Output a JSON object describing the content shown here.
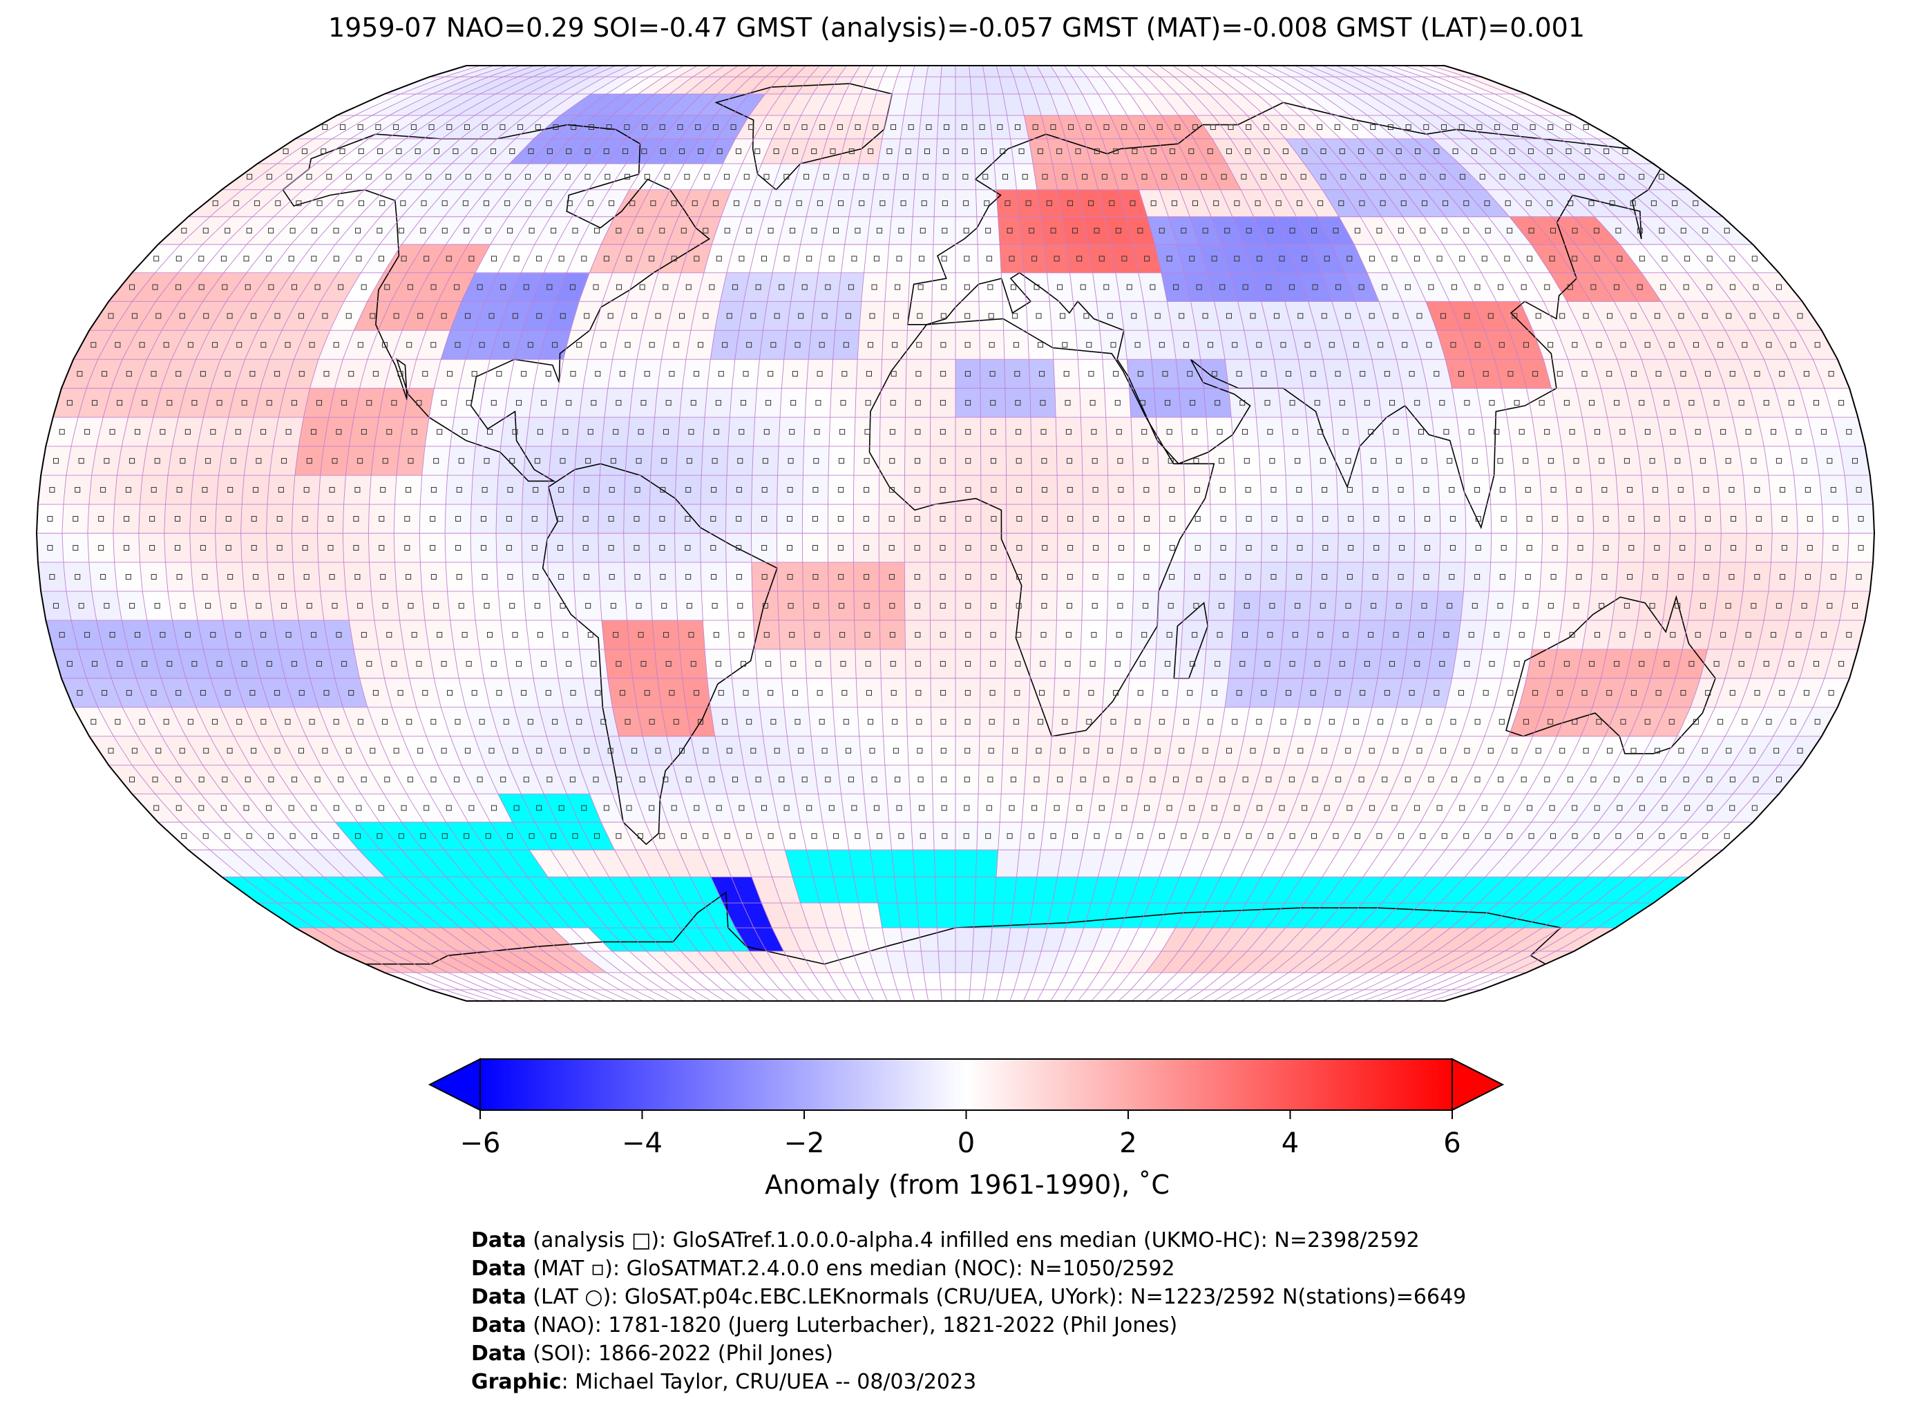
{
  "title": "1959-07 NAO=0.29 SOI=-0.47 GMST (analysis)=-0.057 GMST (MAT)=-0.008 GMST (LAT)=0.001",
  "colorbar": {
    "label": "Anomaly (from 1961-1990), ˚C",
    "ticks": [
      "−6",
      "−4",
      "−2",
      "0",
      "2",
      "4",
      "6"
    ],
    "range": [
      -6,
      6
    ],
    "colors": {
      "low": "#0000ff",
      "mid": "#ffffff",
      "high": "#ff0000"
    }
  },
  "map": {
    "projection": "Robinson",
    "grid_step_deg": 5,
    "no_data_color": "#00ffff",
    "grid_line_color": "#c080d0",
    "regions": [
      {
        "name": "North America interior",
        "lon": [
          -105,
          -80
        ],
        "lat": [
          30,
          45
        ],
        "value": -2.5
      },
      {
        "name": "Canadian Arctic",
        "lon": [
          -115,
          -60
        ],
        "lat": [
          65,
          80
        ],
        "value": -2.2
      },
      {
        "name": "Western USA",
        "lon": [
          -125,
          -105
        ],
        "lat": [
          35,
          50
        ],
        "value": 1.8
      },
      {
        "name": "Eastern Canada",
        "lon": [
          -80,
          -55
        ],
        "lat": [
          45,
          60
        ],
        "value": 1.6
      },
      {
        "name": "North Pacific",
        "lon": [
          -180,
          -130
        ],
        "lat": [
          20,
          45
        ],
        "value": 1.2
      },
      {
        "name": "Eastern Pacific",
        "lon": [
          -130,
          -105
        ],
        "lat": [
          10,
          25
        ],
        "value": 1.8
      },
      {
        "name": "Central Atlantic",
        "lon": [
          -50,
          -20
        ],
        "lat": [
          30,
          45
        ],
        "value": -1.2
      },
      {
        "name": "Greenland",
        "lon": [
          -50,
          -20
        ],
        "lat": [
          65,
          80
        ],
        "value": 0.6
      },
      {
        "name": "Eastern Europe",
        "lon": [
          10,
          45
        ],
        "lat": [
          45,
          60
        ],
        "value": 3.2
      },
      {
        "name": "Scandinavia and NW Russia",
        "lon": [
          20,
          70
        ],
        "lat": [
          60,
          75
        ],
        "value": 2.0
      },
      {
        "name": "Central Asia",
        "lon": [
          45,
          90
        ],
        "lat": [
          40,
          55
        ],
        "value": -2.5
      },
      {
        "name": "Siberia",
        "lon": [
          90,
          130
        ],
        "lat": [
          55,
          70
        ],
        "value": -1.5
      },
      {
        "name": "Northeast Asia",
        "lon": [
          130,
          150
        ],
        "lat": [
          40,
          55
        ],
        "value": 2.8
      },
      {
        "name": "China",
        "lon": [
          100,
          120
        ],
        "lat": [
          25,
          40
        ],
        "value": 2.6
      },
      {
        "name": "Sahara",
        "lon": [
          0,
          20
        ],
        "lat": [
          20,
          30
        ],
        "value": -1.5
      },
      {
        "name": "Arabia",
        "lon": [
          35,
          55
        ],
        "lat": [
          20,
          30
        ],
        "value": -1.8
      },
      {
        "name": "Southern South America",
        "lon": [
          -70,
          -50
        ],
        "lat": [
          -35,
          -15
        ],
        "value": 2.4
      },
      {
        "name": "Tropical South Atlantic",
        "lon": [
          -40,
          -10
        ],
        "lat": [
          -20,
          -5
        ],
        "value": 1.6
      },
      {
        "name": "Australia",
        "lon": [
          115,
          150
        ],
        "lat": [
          -35,
          -20
        ],
        "value": 1.8
      },
      {
        "name": "Indian Ocean",
        "lon": [
          55,
          100
        ],
        "lat": [
          -30,
          -10
        ],
        "value": -1.2
      },
      {
        "name": "South Pacific",
        "lon": [
          -180,
          -120
        ],
        "lat": [
          -30,
          -15
        ],
        "value": -1.5
      },
      {
        "name": "West Antarctica",
        "lon": [
          -90,
          -50
        ],
        "lat": [
          -75,
          -60
        ],
        "value": -5.5
      },
      {
        "name": "East Antarctica coast",
        "lon": [
          60,
          180
        ],
        "lat": [
          -80,
          -70
        ],
        "value": 1.0
      },
      {
        "name": "Ross Sea sector",
        "lon": [
          -180,
          -110
        ],
        "lat": [
          -80,
          -70
        ],
        "value": 1.6
      }
    ],
    "no_data_regions": [
      {
        "lon": [
          -180,
          -60
        ],
        "lat": [
          -70,
          -60
        ]
      },
      {
        "lon": [
          -140,
          -100
        ],
        "lat": [
          -60,
          -50
        ]
      },
      {
        "lon": [
          -100,
          -80
        ],
        "lat": [
          -55,
          -45
        ]
      },
      {
        "lon": [
          -100,
          -60
        ],
        "lat": [
          -75,
          -70
        ]
      },
      {
        "lon": [
          -40,
          10
        ],
        "lat": [
          -65,
          -55
        ]
      },
      {
        "lon": [
          20,
          180
        ],
        "lat": [
          -70,
          -60
        ]
      },
      {
        "lon": [
          -20,
          20
        ],
        "lat": [
          -70,
          -60
        ]
      }
    ]
  },
  "credits": [
    {
      "bold": "Data",
      "text": " (analysis □): GloSATref.1.0.0.0-alpha.4 infilled ens median (UKMO-HC): N=2398/2592"
    },
    {
      "bold": "Data",
      "text": " (MAT ▫): GloSATMAT.2.4.0.0 ens median (NOC): N=1050/2592"
    },
    {
      "bold": "Data",
      "text": " (LAT ○): GloSAT.p04c.EBC.LEKnormals (CRU/UEA, UYork): N=1223/2592 N(stations)=6649"
    },
    {
      "bold": "Data",
      "text": " (NAO): 1781-1820 (Juerg Luterbacher), 1821-2022 (Phil Jones)"
    },
    {
      "bold": "Data",
      "text": " (SOI): 1866-2022 (Phil Jones)"
    },
    {
      "bold": "Graphic",
      "text": ": Michael Taylor, CRU/UEA -- 08/03/2023"
    }
  ]
}
